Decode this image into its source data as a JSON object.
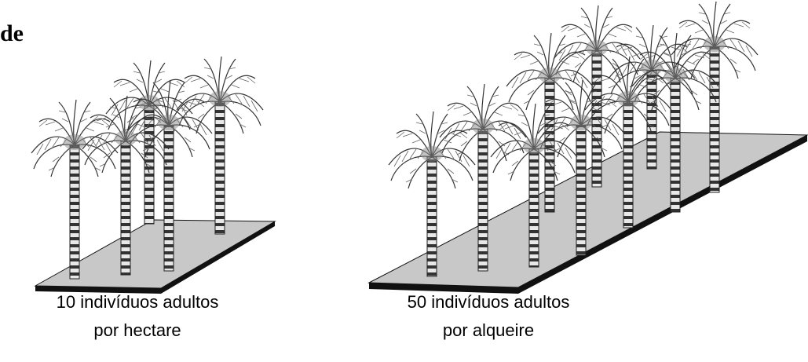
{
  "title": "de",
  "captions": [
    {
      "line1": "10 indivíduos adultos",
      "line2": "por hectare"
    },
    {
      "line1": "50 indivíduos adultos",
      "line2": "por alqueire"
    }
  ]
}
